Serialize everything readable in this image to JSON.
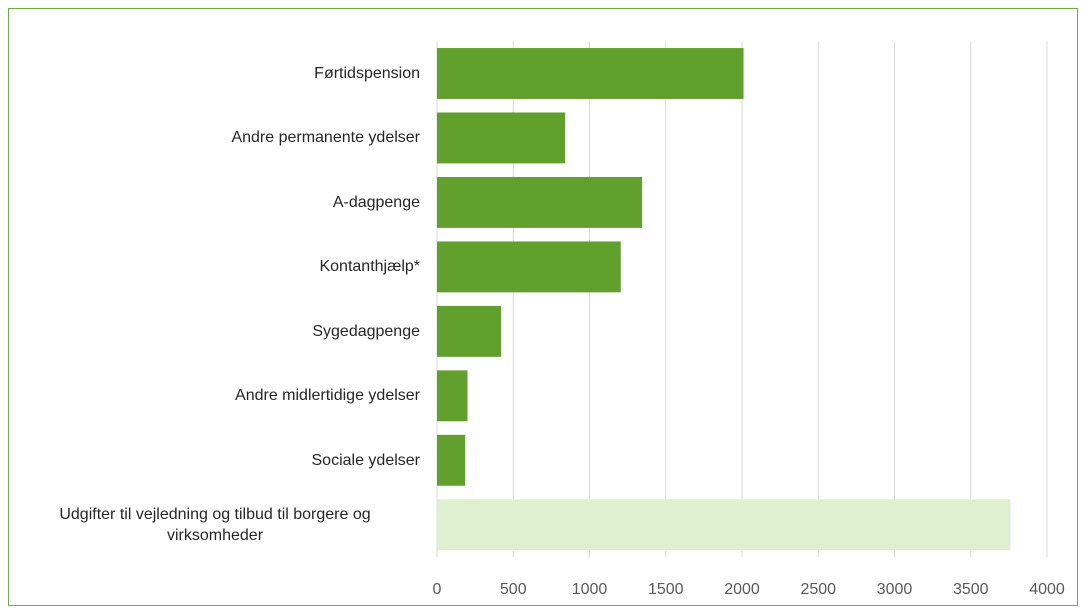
{
  "chart_data": {
    "type": "bar",
    "orientation": "horizontal",
    "categories": [
      "Førtidspension",
      "Andre permanente ydelser",
      "A-dagpenge",
      "Kontanthjælp*",
      "Sygedagpenge",
      "Andre midlertidige ydelser",
      "Sociale ydelser",
      "Udgifter til vejledning og tilbud til borgere og virksomheder"
    ],
    "values": [
      2010,
      840,
      1345,
      1205,
      420,
      200,
      185,
      3760
    ],
    "colors": [
      "#62a02e",
      "#62a02e",
      "#62a02e",
      "#62a02e",
      "#62a02e",
      "#62a02e",
      "#62a02e",
      "#dff0d0"
    ],
    "xlim": [
      0,
      4000
    ],
    "xticks": [
      0,
      500,
      1000,
      1500,
      2000,
      2500,
      3000,
      3500,
      4000
    ],
    "grid": true
  }
}
